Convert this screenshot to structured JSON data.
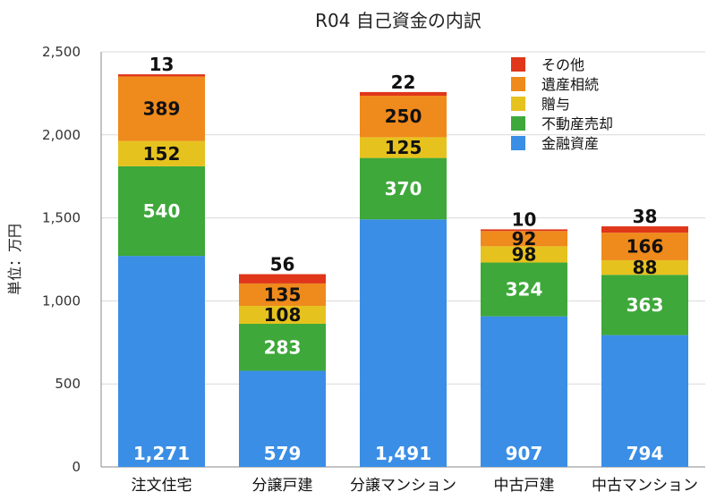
{
  "chart_data": {
    "type": "bar",
    "stacked": true,
    "title": "R04 自己資金の内訳",
    "ylabel": "単位：万円",
    "xlabel": "",
    "ylim": [
      0,
      2500
    ],
    "yticks": [
      0,
      500,
      1000,
      1500,
      2000,
      2500
    ],
    "ytick_labels": [
      "0",
      "500",
      "1,000",
      "1,500",
      "2,000",
      "2,500"
    ],
    "grid": true,
    "legend_position": "top-right",
    "categories": [
      "注文住宅",
      "分譲戸建",
      "分譲マンション",
      "中古戸建",
      "中古マンション"
    ],
    "series": [
      {
        "name": "金融資産",
        "color": "#3a8ee6",
        "label_color": "#ffffff",
        "values": [
          1271,
          579,
          1491,
          907,
          794
        ],
        "labels": [
          "1,271",
          "579",
          "1,491",
          "907",
          "794"
        ]
      },
      {
        "name": "不動産売却",
        "color": "#3ea83a",
        "label_color": "#ffffff",
        "values": [
          540,
          283,
          370,
          324,
          363
        ],
        "labels": [
          "540",
          "283",
          "370",
          "324",
          "363"
        ]
      },
      {
        "name": "贈与",
        "color": "#e6c21e",
        "label_color": "#111111",
        "values": [
          152,
          108,
          125,
          98,
          88
        ],
        "labels": [
          "152",
          "108",
          "125",
          "98",
          "88"
        ]
      },
      {
        "name": "遺産相続",
        "color": "#ef8a1c",
        "label_color": "#111111",
        "values": [
          389,
          135,
          250,
          92,
          166
        ],
        "labels": [
          "389",
          "135",
          "250",
          "92",
          "166"
        ]
      },
      {
        "name": "その他",
        "color": "#e0361a",
        "label_color": "#111111",
        "values": [
          13,
          56,
          22,
          10,
          38
        ],
        "labels": [
          "13",
          "56",
          "22",
          "10",
          "38"
        ]
      }
    ]
  }
}
